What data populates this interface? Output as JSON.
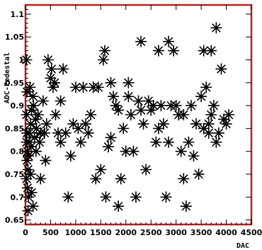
{
  "chart_data": {
    "type": "scatter",
    "title": "",
    "xlabel": "DAC",
    "ylabel": "ADC-Pedestal",
    "xlim": [
      0,
      4500
    ],
    "ylim": [
      0.64,
      1.12
    ],
    "xticks": [
      0,
      500,
      1000,
      1500,
      2000,
      2500,
      3000,
      3500,
      4000,
      4500
    ],
    "x_tick_labels": [
      "0",
      "500",
      "1000",
      "1500",
      "2000",
      "2500",
      "3000",
      "3500",
      "4000",
      "4500"
    ],
    "yticks": [
      0.65,
      0.7,
      0.75,
      0.8,
      0.85,
      0.9,
      0.95,
      1,
      1.05,
      1.1
    ],
    "y_tick_labels": [
      "0.65",
      "0.7",
      "0.75",
      "0.8",
      "0.85",
      "0.9",
      "0.95",
      "1",
      "1.05",
      "1.1"
    ],
    "marker": "star",
    "frame_color": "#b22222",
    "marker_color": "#000000",
    "grid": false,
    "points": [
      [
        20,
        1.0
      ],
      [
        30,
        0.93
      ],
      [
        20,
        0.88
      ],
      [
        30,
        0.84
      ],
      [
        20,
        0.82
      ],
      [
        40,
        0.8
      ],
      [
        30,
        0.78
      ],
      [
        50,
        0.76
      ],
      [
        20,
        0.74
      ],
      [
        40,
        0.72
      ],
      [
        60,
        0.7
      ],
      [
        50,
        0.67
      ],
      [
        70,
        0.84
      ],
      [
        100,
        0.86
      ],
      [
        80,
        0.82
      ],
      [
        60,
        0.79
      ],
      [
        100,
        0.75
      ],
      [
        150,
        0.68
      ],
      [
        120,
        0.71
      ],
      [
        110,
        0.81
      ],
      [
        120,
        0.89
      ],
      [
        90,
        0.94
      ],
      [
        150,
        0.92
      ],
      [
        200,
        0.87
      ],
      [
        180,
        0.83
      ],
      [
        210,
        0.8
      ],
      [
        160,
        0.9
      ],
      [
        250,
        0.88
      ],
      [
        220,
        0.85
      ],
      [
        300,
        0.84
      ],
      [
        280,
        0.82
      ],
      [
        350,
        0.91
      ],
      [
        300,
        0.74
      ],
      [
        400,
        0.78
      ],
      [
        380,
        0.84
      ],
      [
        420,
        0.86
      ],
      [
        450,
        1.0
      ],
      [
        500,
        0.96
      ],
      [
        550,
        0.94
      ],
      [
        520,
        0.98
      ],
      [
        580,
        0.95
      ],
      [
        600,
        0.88
      ],
      [
        650,
        0.84
      ],
      [
        700,
        0.91
      ],
      [
        750,
        0.98
      ],
      [
        700,
        0.82
      ],
      [
        800,
        0.84
      ],
      [
        850,
        0.7
      ],
      [
        900,
        0.79
      ],
      [
        950,
        0.86
      ],
      [
        1000,
        0.94
      ],
      [
        1050,
        0.85
      ],
      [
        1100,
        0.82
      ],
      [
        1150,
        0.94
      ],
      [
        1200,
        0.86
      ],
      [
        1250,
        0.84
      ],
      [
        1300,
        0.88
      ],
      [
        1350,
        0.94
      ],
      [
        1400,
        0.74
      ],
      [
        1450,
        0.94
      ],
      [
        1500,
        0.76
      ],
      [
        1550,
        1.0
      ],
      [
        1580,
        1.02
      ],
      [
        1600,
        0.7
      ],
      [
        1650,
        0.81
      ],
      [
        1700,
        0.83
      ],
      [
        1700,
        0.95
      ],
      [
        1750,
        0.92
      ],
      [
        1800,
        0.9
      ],
      [
        1850,
        0.68
      ],
      [
        1850,
        0.89
      ],
      [
        1900,
        0.74
      ],
      [
        1950,
        0.85
      ],
      [
        2000,
        0.8
      ],
      [
        2050,
        0.95
      ],
      [
        2050,
        0.92
      ],
      [
        2100,
        0.88
      ],
      [
        2150,
        0.8
      ],
      [
        2200,
        0.7
      ],
      [
        2250,
        0.91
      ],
      [
        2300,
        0.89
      ],
      [
        2300,
        1.04
      ],
      [
        2350,
        0.86
      ],
      [
        2400,
        0.76
      ],
      [
        2450,
        0.91
      ],
      [
        2500,
        0.89
      ],
      [
        2550,
        0.9
      ],
      [
        2600,
        0.82
      ],
      [
        2650,
        1.02
      ],
      [
        2650,
        0.85
      ],
      [
        2700,
        0.9
      ],
      [
        2750,
        0.86
      ],
      [
        2800,
        0.7
      ],
      [
        2850,
        0.82
      ],
      [
        2850,
        1.04
      ],
      [
        2900,
        0.9
      ],
      [
        2950,
        1.02
      ],
      [
        3000,
        0.9
      ],
      [
        3050,
        0.88
      ],
      [
        3100,
        0.8
      ],
      [
        3150,
        0.74
      ],
      [
        3150,
        0.88
      ],
      [
        3200,
        0.68
      ],
      [
        3250,
        0.82
      ],
      [
        3300,
        0.9
      ],
      [
        3350,
        0.79
      ],
      [
        3400,
        0.86
      ],
      [
        3450,
        0.75
      ],
      [
        3500,
        0.92
      ],
      [
        3550,
        1.02
      ],
      [
        3550,
        0.85
      ],
      [
        3600,
        0.94
      ],
      [
        3650,
        0.84
      ],
      [
        3650,
        0.86
      ],
      [
        3700,
        1.02
      ],
      [
        3700,
        0.88
      ],
      [
        3750,
        0.9
      ],
      [
        3800,
        0.82
      ],
      [
        3800,
        1.07
      ],
      [
        3850,
        0.84
      ],
      [
        3900,
        0.98
      ],
      [
        3950,
        0.87
      ],
      [
        4000,
        0.86
      ],
      [
        4050,
        0.88
      ]
    ]
  }
}
